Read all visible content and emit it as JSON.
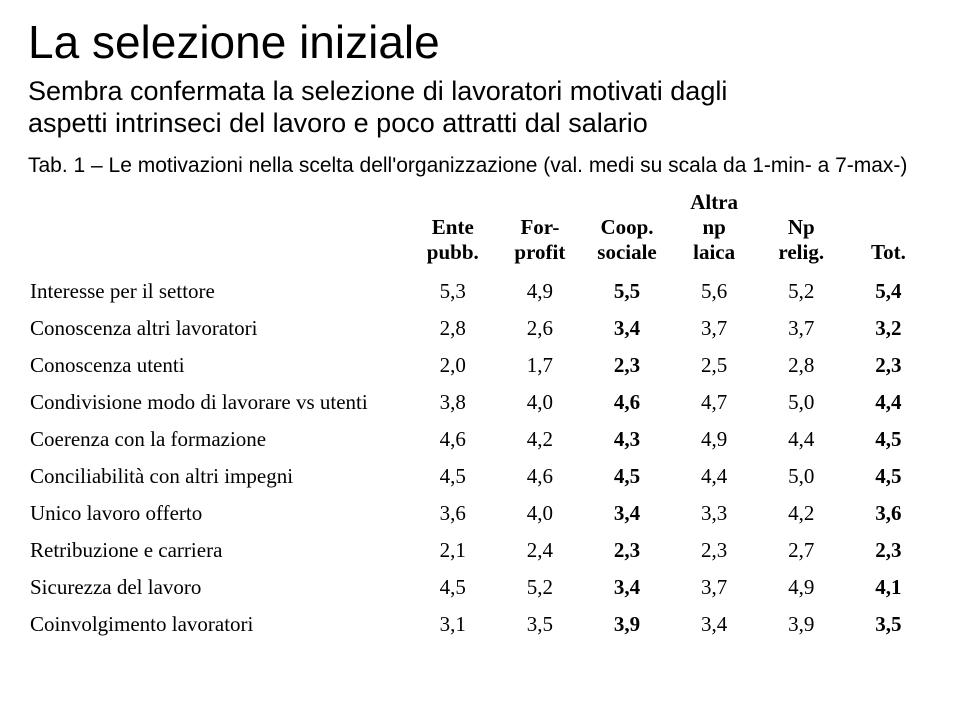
{
  "title": "La selezione iniziale",
  "subtitle_line1": "Sembra confermata la selezione di lavoratori motivati dagli",
  "subtitle_line2": "aspetti intrinseci del lavoro e poco attratti dal salario",
  "caption": "Tab. 1 – Le motivazioni nella scelta dell'organizzazione (val. medi su scala da 1-min- a 7-max-)",
  "columns": [
    "",
    "Ente pubb.",
    "For-profit",
    "Coop. sociale",
    "Altra np laica",
    "Np relig.",
    "Tot."
  ],
  "boldColumns": [
    3,
    6
  ],
  "rows": [
    {
      "label": "Interesse per il settore",
      "values": [
        "5,3",
        "4,9",
        "5,5",
        "5,6",
        "5,2",
        "5,4"
      ]
    },
    {
      "label": "Conoscenza altri lavoratori",
      "values": [
        "2,8",
        "2,6",
        "3,4",
        "3,7",
        "3,7",
        "3,2"
      ]
    },
    {
      "label": "Conoscenza utenti",
      "values": [
        "2,0",
        "1,7",
        "2,3",
        "2,5",
        "2,8",
        "2,3"
      ]
    },
    {
      "label": "Condivisione modo di lavorare vs utenti",
      "values": [
        "3,8",
        "4,0",
        "4,6",
        "4,7",
        "5,0",
        "4,4"
      ]
    },
    {
      "label": "Coerenza con la formazione",
      "values": [
        "4,6",
        "4,2",
        "4,3",
        "4,9",
        "4,4",
        "4,5"
      ]
    },
    {
      "label": "Conciliabilità con altri impegni",
      "values": [
        "4,5",
        "4,6",
        "4,5",
        "4,4",
        "5,0",
        "4,5"
      ]
    },
    {
      "label": "Unico lavoro offerto",
      "values": [
        "3,6",
        "4,0",
        "3,4",
        "3,3",
        "4,2",
        "3,6"
      ]
    },
    {
      "label": "Retribuzione e carriera",
      "values": [
        "2,1",
        "2,4",
        "2,3",
        "2,3",
        "2,7",
        "2,3"
      ]
    },
    {
      "label": "Sicurezza del lavoro",
      "values": [
        "4,5",
        "5,2",
        "3,4",
        "3,7",
        "4,9",
        "4,1"
      ]
    },
    {
      "label": "Coinvolgimento lavoratori",
      "values": [
        "3,1",
        "3,5",
        "3,9",
        "3,4",
        "3,9",
        "3,5"
      ]
    }
  ],
  "style": {
    "title_fontsize": 46,
    "subtitle_fontsize": 27,
    "caption_fontsize": 21,
    "table_fontsize": 21,
    "text_color": "#000000",
    "background_color": "#ffffff"
  }
}
